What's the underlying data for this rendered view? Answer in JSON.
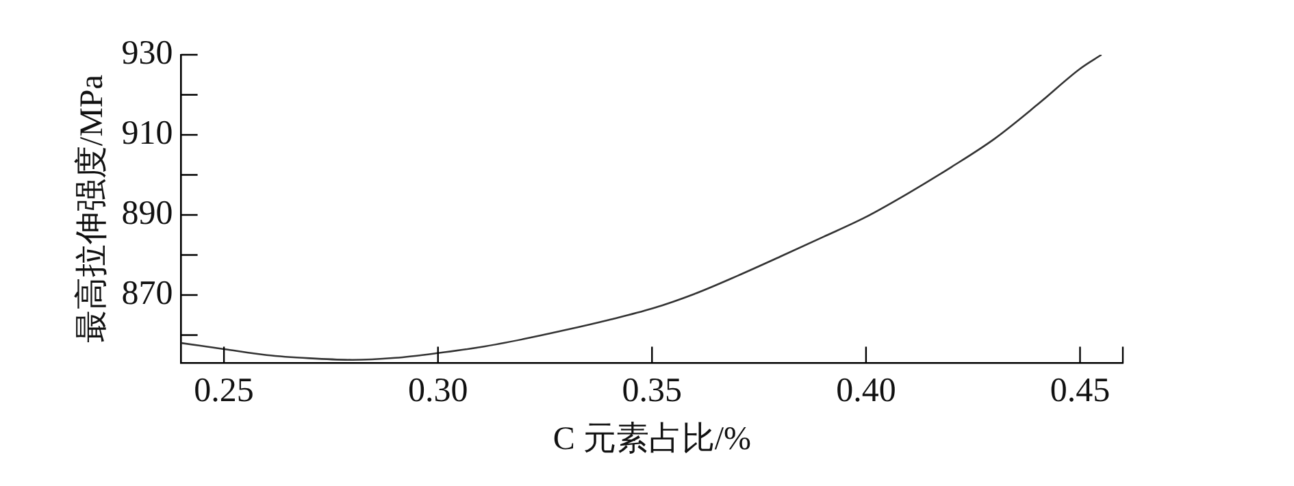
{
  "chart_data": {
    "type": "line",
    "xlabel": "C 元素占比/%",
    "ylabel": "最高拉伸强度/MPa",
    "x": [
      0.24,
      0.25,
      0.26,
      0.27,
      0.28,
      0.29,
      0.3,
      0.31,
      0.32,
      0.33,
      0.34,
      0.35,
      0.36,
      0.37,
      0.38,
      0.39,
      0.4,
      0.41,
      0.42,
      0.43,
      0.44,
      0.45,
      0.455
    ],
    "series": [
      {
        "color": "#333333",
        "values": [
          858.0,
          856.5,
          855.0,
          854.2,
          853.8,
          854.3,
          855.5,
          857.0,
          859.0,
          861.3,
          863.8,
          866.6,
          870.3,
          874.8,
          879.6,
          884.5,
          889.5,
          895.5,
          902.0,
          909.0,
          917.5,
          926.5,
          930.0
        ]
      }
    ],
    "xlim": [
      0.24,
      0.46
    ],
    "xticks": [
      0.25,
      {
        "value": 0.3,
        "label": "0.30"
      },
      0.35,
      {
        "value": 0.4,
        "label": "0.40"
      },
      0.45
    ],
    "ylim": [
      853,
      930
    ],
    "yticks": [
      {
        "value": 860,
        "label": null
      },
      870,
      {
        "value": 880,
        "label": null
      },
      890,
      {
        "value": 900,
        "label": null
      },
      910,
      {
        "value": 920,
        "label": null
      },
      930
    ],
    "grid": false,
    "legend": false,
    "marker": "none",
    "line_style": "solid"
  }
}
